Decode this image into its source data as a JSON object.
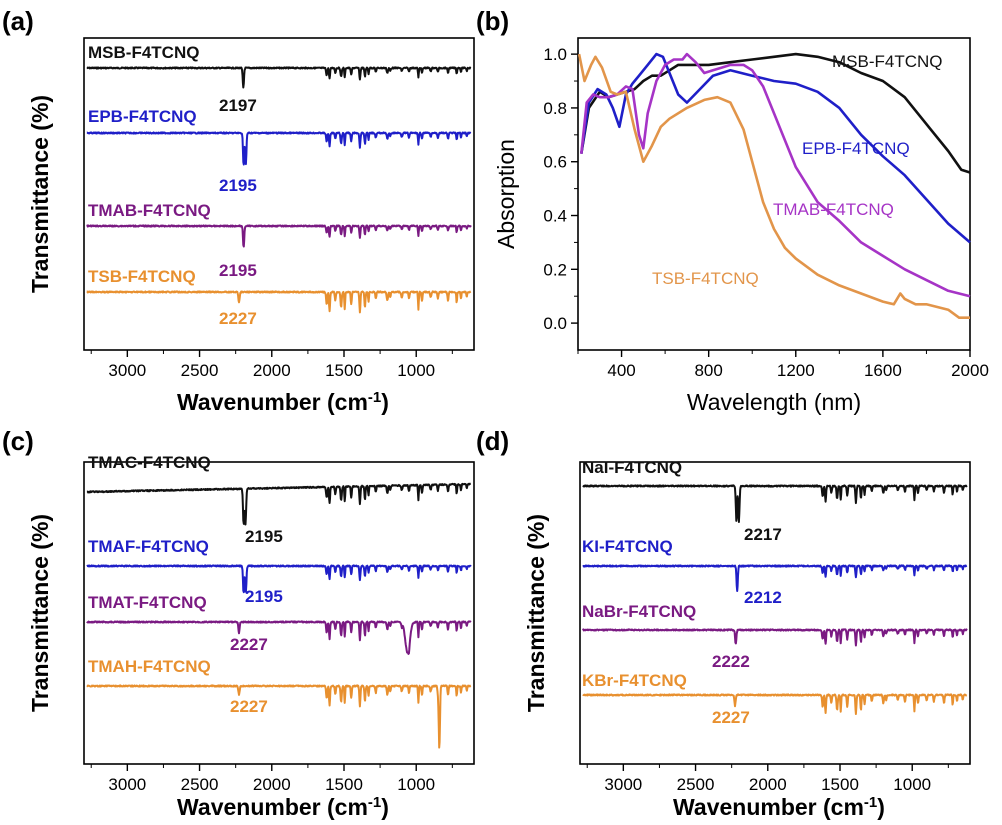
{
  "colors": {
    "black": "#111111",
    "blue": "#1f1fc8",
    "purple": "#7a1a82",
    "orange": "#e8902f",
    "magenta": "#a634c6",
    "tan": "#e2954a"
  },
  "chart_data": [
    {
      "type": "line",
      "panel": "(a)",
      "xlabel": "Wavenumber (cm",
      "xlabel_sup": "-1",
      "xlabel_close": ")",
      "ylabel": "Transmittance (%)",
      "xlim": [
        3300,
        600
      ],
      "xticks": [
        3000,
        2500,
        2000,
        1500,
        1000
      ],
      "series": [
        {
          "name": "MSB-F4TCNQ",
          "color": "#111111",
          "peak_label": "2197",
          "baseline": 0.06,
          "amp": 0.9,
          "cn_peaks": [
            2197
          ],
          "cn_depth": 0.55
        },
        {
          "name": "EPB-F4TCNQ",
          "color": "#1f1fc8",
          "peak_label": "2195",
          "baseline": 0.06,
          "amp": 1.1,
          "cn_peaks": [
            2195,
            2180
          ],
          "cn_depth": 0.9
        },
        {
          "name": "TMAB-F4TCNQ",
          "color": "#7a1a82",
          "peak_label": "2195",
          "baseline": 0.0,
          "amp": 0.9,
          "cn_peaks": [
            2195
          ],
          "cn_depth": 0.6
        },
        {
          "name": "TSB-F4TCNQ",
          "color": "#e8902f",
          "peak_label": "2227",
          "baseline": 0.0,
          "amp": 1.6,
          "cn_peaks": [
            2227
          ],
          "cn_depth": 0.3
        }
      ]
    },
    {
      "type": "line",
      "panel": "(b)",
      "xlabel": "Wavelength (nm)",
      "ylabel": "Absorption",
      "xlim": [
        200,
        2000
      ],
      "ylim": [
        -0.1,
        1.06
      ],
      "xticks": [
        400,
        800,
        1200,
        1600,
        2000
      ],
      "yticks": [
        "0.0",
        "0.2",
        "0.4",
        "0.6",
        "0.8",
        "1.0"
      ],
      "series": [
        {
          "name": "MSB-F4TCNQ",
          "color": "#111111",
          "x": [
            215,
            250,
            300,
            340,
            380,
            420,
            460,
            500,
            540,
            580,
            620,
            660,
            700,
            800,
            900,
            1000,
            1100,
            1200,
            1300,
            1400,
            1500,
            1600,
            1700,
            1800,
            1900,
            1960,
            2000
          ],
          "y": [
            0.63,
            0.8,
            0.86,
            0.84,
            0.85,
            0.86,
            0.87,
            0.9,
            0.92,
            0.92,
            0.94,
            0.96,
            0.96,
            0.96,
            0.97,
            0.98,
            0.99,
            1.0,
            0.99,
            0.97,
            0.93,
            0.9,
            0.84,
            0.74,
            0.64,
            0.57,
            0.56
          ]
        },
        {
          "name": "EPB-F4TCNQ",
          "color": "#1f1fc8",
          "x": [
            215,
            250,
            290,
            330,
            360,
            390,
            420,
            450,
            480,
            520,
            560,
            590,
            620,
            660,
            700,
            760,
            820,
            900,
            1000,
            1100,
            1200,
            1300,
            1400,
            1500,
            1600,
            1700,
            1800,
            1900,
            2000
          ],
          "y": [
            0.63,
            0.82,
            0.87,
            0.85,
            0.8,
            0.73,
            0.85,
            0.89,
            0.92,
            0.96,
            1.0,
            0.99,
            0.93,
            0.85,
            0.82,
            0.87,
            0.92,
            0.94,
            0.92,
            0.9,
            0.89,
            0.86,
            0.8,
            0.7,
            0.62,
            0.55,
            0.46,
            0.37,
            0.3
          ]
        },
        {
          "name": "TMAB-F4TCNQ",
          "color": "#a634c6",
          "x": [
            215,
            240,
            270,
            300,
            340,
            380,
            420,
            450,
            480,
            500,
            520,
            560,
            600,
            640,
            680,
            700,
            740,
            780,
            820,
            860,
            900,
            960,
            1000,
            1050,
            1100,
            1200,
            1300,
            1400,
            1500,
            1600,
            1700,
            1800,
            1900,
            2000
          ],
          "y": [
            0.63,
            0.82,
            0.85,
            0.84,
            0.84,
            0.85,
            0.88,
            0.87,
            0.7,
            0.65,
            0.78,
            0.9,
            0.96,
            0.98,
            0.98,
            1.0,
            0.97,
            0.93,
            0.94,
            0.95,
            0.96,
            0.96,
            0.94,
            0.88,
            0.78,
            0.58,
            0.45,
            0.38,
            0.3,
            0.25,
            0.2,
            0.16,
            0.12,
            0.1
          ]
        },
        {
          "name": "TSB-F4TCNQ",
          "color": "#e2954a",
          "x": [
            205,
            230,
            260,
            280,
            310,
            350,
            380,
            420,
            460,
            500,
            540,
            580,
            620,
            700,
            780,
            840,
            900,
            960,
            1000,
            1050,
            1100,
            1150,
            1200,
            1300,
            1400,
            1500,
            1600,
            1650,
            1680,
            1700,
            1750,
            1800,
            1850,
            1900,
            1950,
            2000
          ],
          "y": [
            1.0,
            0.9,
            0.96,
            0.99,
            0.95,
            0.86,
            0.85,
            0.86,
            0.72,
            0.6,
            0.66,
            0.73,
            0.76,
            0.8,
            0.83,
            0.84,
            0.82,
            0.72,
            0.6,
            0.45,
            0.35,
            0.28,
            0.24,
            0.18,
            0.14,
            0.11,
            0.08,
            0.07,
            0.11,
            0.09,
            0.07,
            0.07,
            0.06,
            0.05,
            0.02,
            0.02
          ]
        }
      ]
    },
    {
      "type": "line",
      "panel": "(c)",
      "xlabel": "Wavenumber (cm",
      "xlabel_sup": "-1",
      "xlabel_close": ")",
      "ylabel": "Transmittance (%)",
      "xlim": [
        3300,
        600
      ],
      "xticks": [
        3000,
        2500,
        2000,
        1500,
        1000
      ],
      "series": [
        {
          "name": "TMAC-F4TCNQ",
          "color": "#111111",
          "peak_label": "2195",
          "baseline": 0.12,
          "amp": 1.4,
          "cn_peaks": [
            2195,
            2182
          ],
          "cn_depth": 1.0
        },
        {
          "name": "TMAF-F4TCNQ",
          "color": "#1f1fc8",
          "peak_label": "2195",
          "baseline": 0.02,
          "amp": 1.1,
          "cn_peaks": [
            2195,
            2180
          ],
          "cn_depth": 0.75
        },
        {
          "name": "TMAT-F4TCNQ",
          "color": "#7a1a82",
          "peak_label": "2227",
          "baseline": 0.0,
          "amp": 1.4,
          "cn_peaks": [
            2227
          ],
          "cn_depth": 0.3
        },
        {
          "name": "TMAH-F4TCNQ",
          "color": "#e8902f",
          "peak_label": "2227",
          "baseline": 0.0,
          "amp": 1.6,
          "cn_peaks": [
            2227
          ],
          "cn_depth": 0.25
        }
      ]
    },
    {
      "type": "line",
      "panel": "(d)",
      "xlabel": "Wavenumber (cm",
      "xlabel_sup": "-1",
      "xlabel_close": ")",
      "ylabel": "Transmittance (%)",
      "xlim": [
        3300,
        600
      ],
      "xticks": [
        3000,
        2500,
        2000,
        1500,
        1000
      ],
      "series": [
        {
          "name": "NaI-F4TCNQ",
          "color": "#111111",
          "peak_label": "2217",
          "baseline": 0.06,
          "amp": 1.3,
          "cn_peaks": [
            2217,
            2200
          ],
          "cn_depth": 1.0
        },
        {
          "name": "KI-F4TCNQ",
          "color": "#1f1fc8",
          "peak_label": "2212",
          "baseline": 0.0,
          "amp": 0.9,
          "cn_peaks": [
            2212
          ],
          "cn_depth": 0.7
        },
        {
          "name": "NaBr-F4TCNQ",
          "color": "#7a1a82",
          "peak_label": "2222",
          "baseline": 0.0,
          "amp": 1.2,
          "cn_peaks": [
            2222
          ],
          "cn_depth": 0.4
        },
        {
          "name": "KBr-F4TCNQ",
          "color": "#e8902f",
          "peak_label": "2227",
          "baseline": 0.0,
          "amp": 1.5,
          "cn_peaks": [
            2227
          ],
          "cn_depth": 0.3
        }
      ]
    }
  ]
}
